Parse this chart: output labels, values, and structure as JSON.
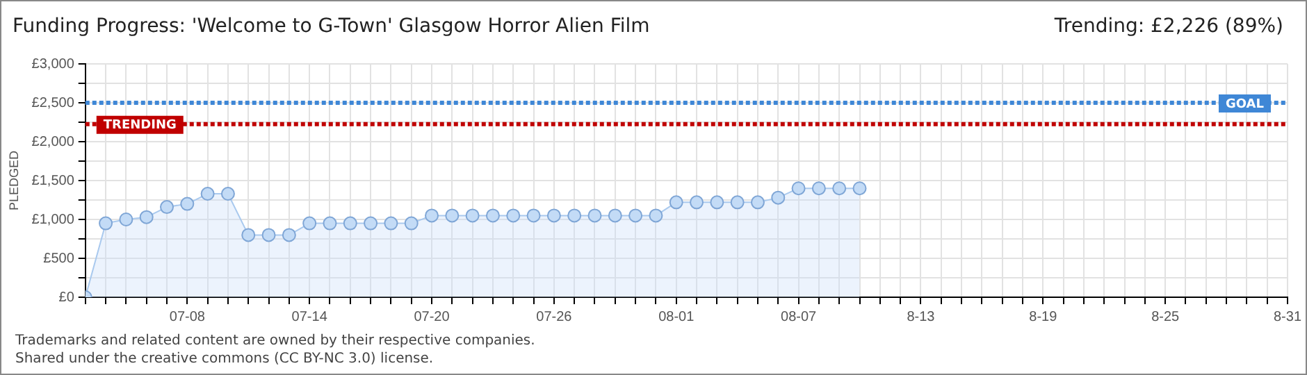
{
  "chart_data": {
    "type": "area",
    "title": "Funding Progress: 'Welcome to G-Town' Glasgow Horror Alien Film",
    "subtitle": "Trending:  £2,226 (89%)",
    "ylabel": "PLEDGED",
    "x": [
      "--07-03",
      "--07-04",
      "--07-05",
      "--07-06",
      "--07-07",
      "--07-08",
      "--07-09",
      "--07-10",
      "--07-11",
      "--07-12",
      "--07-13",
      "--07-14",
      "--07-15",
      "--07-16",
      "--07-17",
      "--07-18",
      "--07-19",
      "--07-20",
      "--07-21",
      "--07-22",
      "--07-23",
      "--07-24",
      "--07-25",
      "--07-26",
      "--07-27",
      "--07-28",
      "--07-29",
      "--07-30",
      "--07-31",
      "--08-01",
      "--08-02",
      "--08-03",
      "--08-04",
      "--08-05",
      "--08-06",
      "--08-07",
      "--08-08",
      "--08-09",
      "--08-10"
    ],
    "series": [
      {
        "color": "#a9c9ee",
        "values": [
          0,
          950,
          1000,
          1030,
          1160,
          1200,
          1330,
          1330,
          800,
          800,
          800,
          950,
          950,
          950,
          950,
          950,
          950,
          1050,
          1050,
          1050,
          1050,
          1050,
          1050,
          1050,
          1050,
          1050,
          1050,
          1050,
          1050,
          1220,
          1220,
          1220,
          1220,
          1220,
          1280,
          1400,
          1400,
          1400,
          1400
        ]
      }
    ],
    "marker": "circle",
    "grid": true,
    "legend": false,
    "xlim": [
      "--07-03",
      "--08-31"
    ],
    "xticks": [
      {
        "value": "--07-03",
        "label": null
      },
      {
        "value": "--07-04",
        "label": null
      },
      {
        "value": "--07-05",
        "label": null
      },
      {
        "value": "--07-06",
        "label": null
      },
      {
        "value": "--07-07",
        "label": null
      },
      {
        "value": "--07-08",
        "label": "07-08"
      },
      {
        "value": "--07-09",
        "label": null
      },
      {
        "value": "--07-10",
        "label": null
      },
      {
        "value": "--07-11",
        "label": null
      },
      {
        "value": "--07-12",
        "label": null
      },
      {
        "value": "--07-13",
        "label": null
      },
      {
        "value": "--07-14",
        "label": "07-14"
      },
      {
        "value": "--07-15",
        "label": null
      },
      {
        "value": "--07-16",
        "label": null
      },
      {
        "value": "--07-17",
        "label": null
      },
      {
        "value": "--07-18",
        "label": null
      },
      {
        "value": "--07-19",
        "label": null
      },
      {
        "value": "--07-20",
        "label": "07-20"
      },
      {
        "value": "--07-21",
        "label": null
      },
      {
        "value": "--07-22",
        "label": null
      },
      {
        "value": "--07-23",
        "label": null
      },
      {
        "value": "--07-24",
        "label": null
      },
      {
        "value": "--07-25",
        "label": null
      },
      {
        "value": "--07-26",
        "label": "07-26"
      },
      {
        "value": "--07-27",
        "label": null
      },
      {
        "value": "--07-28",
        "label": null
      },
      {
        "value": "--07-29",
        "label": null
      },
      {
        "value": "--07-30",
        "label": null
      },
      {
        "value": "--07-31",
        "label": null
      },
      {
        "value": "--08-01",
        "label": "08-01"
      },
      {
        "value": "--08-02",
        "label": null
      },
      {
        "value": "--08-03",
        "label": null
      },
      {
        "value": "--08-04",
        "label": null
      },
      {
        "value": "--08-05",
        "label": null
      },
      {
        "value": "--08-06",
        "label": null
      },
      {
        "value": "--08-07",
        "label": "08-07"
      },
      {
        "value": "--08-08",
        "label": null
      },
      {
        "value": "--08-09",
        "label": null
      },
      {
        "value": "--08-10",
        "label": null
      },
      {
        "value": "--08-11",
        "label": null
      },
      {
        "value": "--08-12",
        "label": null
      },
      {
        "value": "--08-13",
        "label": "8-13"
      },
      {
        "value": "--08-14",
        "label": null
      },
      {
        "value": "--08-15",
        "label": null
      },
      {
        "value": "--08-16",
        "label": null
      },
      {
        "value": "--08-17",
        "label": null
      },
      {
        "value": "--08-18",
        "label": null
      },
      {
        "value": "--08-19",
        "label": "8-19"
      },
      {
        "value": "--08-20",
        "label": null
      },
      {
        "value": "--08-21",
        "label": null
      },
      {
        "value": "--08-22",
        "label": null
      },
      {
        "value": "--08-23",
        "label": null
      },
      {
        "value": "--08-24",
        "label": null
      },
      {
        "value": "--08-25",
        "label": "8-25"
      },
      {
        "value": "--08-26",
        "label": null
      },
      {
        "value": "--08-27",
        "label": null
      },
      {
        "value": "--08-28",
        "label": null
      },
      {
        "value": "--08-29",
        "label": null
      },
      {
        "value": "--08-30",
        "label": null
      },
      {
        "value": "--08-31",
        "label": "8-31"
      }
    ],
    "ylim": [
      0,
      3000
    ],
    "yticks": [
      {
        "value": 0,
        "label": "£0"
      },
      {
        "value": 250,
        "label": null
      },
      {
        "value": 500,
        "label": "£500"
      },
      {
        "value": 750,
        "label": null
      },
      {
        "value": 1000,
        "label": "£1,000"
      },
      {
        "value": 1250,
        "label": null
      },
      {
        "value": 1500,
        "label": "£1,500"
      },
      {
        "value": 1750,
        "label": null
      },
      {
        "value": 2000,
        "label": "£2,000"
      },
      {
        "value": 2250,
        "label": null
      },
      {
        "value": 2500,
        "label": "£2,500"
      },
      {
        "value": 2750,
        "label": null
      },
      {
        "value": 3000,
        "label": "£3,000"
      }
    ],
    "ref_lines": [
      {
        "axis": "y",
        "value": 2500,
        "label": "GOAL",
        "color": "#3f87d6",
        "line_style": "dotted"
      },
      {
        "axis": "y",
        "value": 2226,
        "label": "TRENDING",
        "color": "#c00000",
        "line_style": "dotted"
      }
    ],
    "annotations": [
      "Trademarks and related content are owned by their respective companies.",
      "Shared under the creative commons (CC BY-NC 3.0) license."
    ]
  }
}
